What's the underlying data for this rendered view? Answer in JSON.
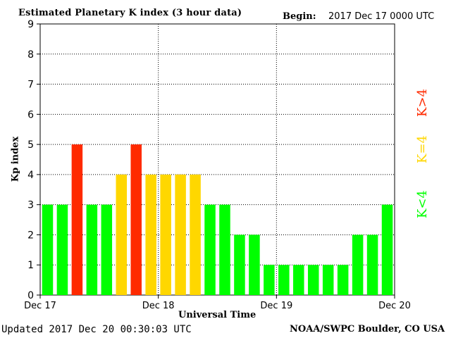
{
  "header": {
    "title": "Estimated Planetary K index (3 hour data)",
    "begin_label": "Begin:",
    "begin_value": "2017 Dec 17 0000 UTC"
  },
  "footer": {
    "updated": "Updated 2017 Dec 20 00:30:03 UTC",
    "credit": "NOAA/SWPC Boulder, CO USA"
  },
  "legend": [
    {
      "label": "K<4",
      "color": "#00ff00"
    },
    {
      "label": "K=4",
      "color": "#ffd700"
    },
    {
      "label": "K>4",
      "color": "#ff2a00"
    }
  ],
  "chart_data": {
    "type": "bar",
    "title": "Estimated Planetary K index (3 hour data)",
    "xlabel": "Universal Time",
    "ylabel": "Kp index",
    "ylim": [
      0,
      9
    ],
    "yticks": [
      0,
      1,
      2,
      3,
      4,
      5,
      6,
      7,
      8,
      9
    ],
    "x_tick_labels": [
      "Dec 17",
      "Dec 18",
      "Dec 19",
      "Dec 20"
    ],
    "grid": true,
    "series": [
      {
        "values": [
          3,
          3,
          5,
          3,
          3,
          4,
          5,
          4,
          4,
          4,
          4,
          3,
          3,
          2,
          2,
          1,
          1,
          1,
          1,
          1,
          1,
          2,
          2,
          3
        ]
      }
    ],
    "colors": {
      "below4": "#00ff00",
      "equal4": "#ffd700",
      "above4": "#ff2a00"
    }
  }
}
